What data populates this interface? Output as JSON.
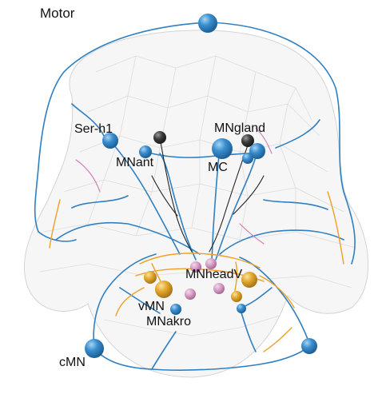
{
  "figure": {
    "title": "Motor",
    "labels": {
      "ser_h1": "Ser-h1",
      "mnant": "MNant",
      "mngland": "MNgland",
      "mc": "MC",
      "mnheadv": "MNheadV",
      "vmn": "vMN",
      "mnakro": "MNakro",
      "cmn": "cMN"
    },
    "colors": {
      "neurite_blue": "#2f7fc1",
      "neurite_orange": "#f0a020",
      "neurite_pink": "#d07ab0",
      "neurite_black": "#222222",
      "soma_blue": "#3a8fcf",
      "soma_dark": "#3a3a3a",
      "soma_gold": "#e0a528",
      "soma_pink": "#d59ac4",
      "body_outline": "#d8d8d8"
    }
  }
}
